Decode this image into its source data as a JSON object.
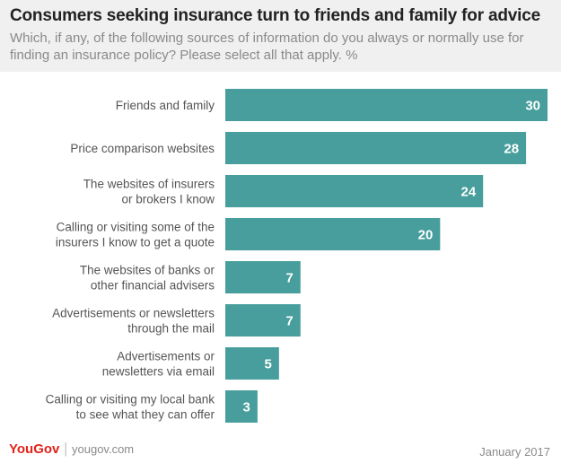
{
  "brand": {
    "logo_main": "YouGov",
    "logo_accent": "",
    "url": "yougov.com",
    "date": "January 2017"
  },
  "colors": {
    "bar": "#479e9c",
    "label": "#555555",
    "value": "#ffffff"
  },
  "chart_data": {
    "type": "bar",
    "orientation": "horizontal",
    "title": "Consumers seeking insurance turn to friends and family for advice",
    "subtitle": "Which, if any, of the following sources of information do you always or normally use for finding an insurance policy? Please select all that apply. %",
    "xlabel": "",
    "ylabel": "",
    "xlim": [
      0,
      30
    ],
    "grid": false,
    "categories": [
      [
        "Friends and family"
      ],
      [
        "Price comparison websites"
      ],
      [
        "The websites of insurers",
        "or brokers I know"
      ],
      [
        "Calling or visiting some of the",
        "insurers I know to get a quote"
      ],
      [
        "The websites of banks or",
        "other financial advisers"
      ],
      [
        "Advertisements or newsletters",
        "through the mail"
      ],
      [
        "Advertisements or",
        "newsletters via email"
      ],
      [
        "Calling or visiting my local bank",
        "to see what they can offer"
      ]
    ],
    "values": [
      30,
      28,
      24,
      20,
      7,
      7,
      5,
      3
    ]
  }
}
